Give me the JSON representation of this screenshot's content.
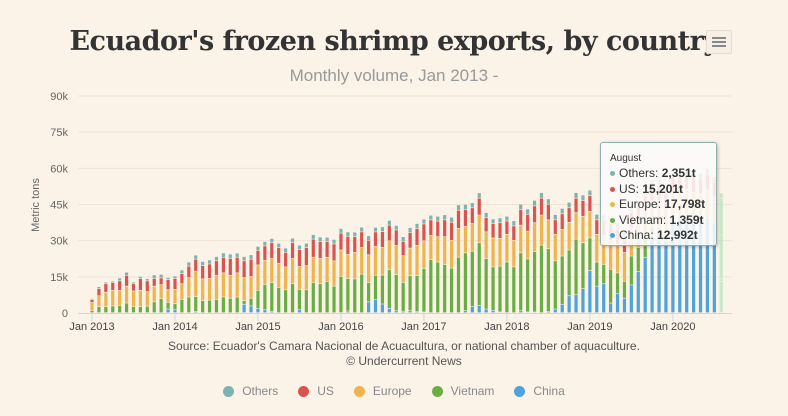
{
  "header": {
    "title": "Ecuador's frozen shrimp exports, by country",
    "subtitle": "Monthly volume, Jan 2013 -",
    "menu_icon": "hamburger-menu-icon"
  },
  "source": {
    "line1": "Source: Ecuador's Camara Nacional de Acuacultura, or national chamber of aquaculture.",
    "line2": "© Undercurrent News"
  },
  "legend": [
    {
      "name": "Others",
      "color": "#7fb3b0"
    },
    {
      "name": "US",
      "color": "#d9534f"
    },
    {
      "name": "Europe",
      "color": "#efb54c"
    },
    {
      "name": "Vietnam",
      "color": "#6aad45"
    },
    {
      "name": "China",
      "color": "#4ea3d8"
    }
  ],
  "tooltip": {
    "title": "August",
    "rows": [
      {
        "label": "Others",
        "value": "2,351t",
        "color": "#7fb3b0"
      },
      {
        "label": "US",
        "value": "15,201t",
        "color": "#d9534f"
      },
      {
        "label": "Europe",
        "value": "17,798t",
        "color": "#efb54c"
      },
      {
        "label": "Vietnam",
        "value": "1,359t",
        "color": "#6aad45"
      },
      {
        "label": "China",
        "value": "12,992t",
        "color": "#4ea3d8"
      }
    ]
  },
  "chart_data": {
    "type": "bar",
    "stacked": true,
    "title": "Ecuador's frozen shrimp exports, by country",
    "subtitle": "Monthly volume, Jan 2013 -",
    "xlabel": "",
    "ylabel": "Metric tons",
    "ylim": [
      0,
      90000
    ],
    "yticks": [
      0,
      15000,
      30000,
      45000,
      60000,
      75000,
      90000
    ],
    "ytick_labels": [
      "0",
      "15k",
      "30k",
      "45k",
      "60k",
      "75k",
      "90k"
    ],
    "xtick_labels": [
      "Jan 2013",
      "Jan 2014",
      "Jan 2015",
      "Jan 2016",
      "Jan 2017",
      "Jan 2018",
      "Jan 2019",
      "Jan 2020"
    ],
    "xtick_month_index": [
      0,
      12,
      24,
      36,
      48,
      60,
      72,
      84
    ],
    "grid": true,
    "legend_position": "bottom",
    "start_month": "Jan 2013",
    "end_month": "Aug 2020",
    "highlighted_index": 91,
    "series": [
      {
        "name": "China",
        "color": "#4ea3d8",
        "values": [
          0,
          0,
          0,
          0,
          0,
          0,
          0,
          0,
          0,
          0,
          0,
          1500,
          1200,
          0,
          0,
          500,
          0,
          0,
          0,
          0,
          0,
          0,
          3500,
          2800,
          1800,
          1200,
          500,
          0,
          0,
          0,
          1200,
          0,
          0,
          0,
          0,
          0,
          0,
          700,
          0,
          0,
          4500,
          5500,
          3600,
          1800,
          800,
          600,
          800,
          400,
          300,
          0,
          0,
          0,
          0,
          0,
          800,
          2500,
          3000,
          1500,
          1000,
          300,
          0,
          0,
          800,
          300,
          300,
          0,
          500,
          1500,
          3500,
          7000,
          7500,
          10000,
          17500,
          11000,
          12000,
          4000,
          8000,
          6000,
          11500,
          17000,
          23000,
          32000,
          33000,
          30000,
          38000,
          38500,
          38500,
          38000,
          37500,
          38000,
          36000,
          12992
        ]
      },
      {
        "name": "Vietnam",
        "color": "#6aad45",
        "values": [
          1000,
          2500,
          2500,
          2800,
          3000,
          4000,
          2500,
          2500,
          2700,
          4500,
          5800,
          2800,
          2500,
          5500,
          6500,
          6200,
          5000,
          5200,
          5500,
          6500,
          6000,
          6500,
          1500,
          3200,
          7500,
          10500,
          12000,
          10500,
          9500,
          12000,
          8500,
          9500,
          12500,
          12000,
          13000,
          11000,
          15000,
          13500,
          14000,
          16000,
          8000,
          10000,
          12000,
          16000,
          15000,
          12000,
          14500,
          15000,
          18000,
          22000,
          21000,
          20000,
          18500,
          23000,
          24000,
          23000,
          26000,
          21000,
          18000,
          19000,
          21000,
          19000,
          24000,
          22000,
          25000,
          28000,
          26000,
          20000,
          20000,
          19000,
          23000,
          19000,
          13500,
          10000,
          8000,
          14000,
          8500,
          7000,
          12000,
          10000,
          8000,
          3500,
          2500,
          3000,
          1500,
          1500,
          1200,
          1000,
          1000,
          1200,
          1100,
          1359
        ]
      },
      {
        "name": "Europe",
        "color": "#efb54c",
        "values": [
          3200,
          4500,
          6000,
          6500,
          6200,
          7000,
          6500,
          6800,
          6000,
          6500,
          5800,
          5200,
          6000,
          6500,
          8000,
          10500,
          9000,
          9000,
          10000,
          10000,
          9500,
          10000,
          9500,
          9000,
          10500,
          10000,
          10000,
          10000,
          9500,
          10500,
          9500,
          10000,
          10500,
          10500,
          10000,
          10500,
          11000,
          10000,
          11000,
          11000,
          11500,
          12000,
          11500,
          12000,
          12000,
          11000,
          11500,
          12500,
          11500,
          10000,
          10500,
          11500,
          11500,
          12000,
          11000,
          11500,
          11500,
          11000,
          12000,
          11500,
          11500,
          11000,
          11500,
          11500,
          12000,
          12500,
          12000,
          11000,
          11000,
          11500,
          11000,
          11000,
          11000,
          11500,
          12000,
          12000,
          12000,
          12000,
          11500,
          11000,
          11000,
          11000,
          11000,
          10500,
          10500,
          11000,
          11500,
          11000,
          11000,
          11500,
          11000,
          17798
        ]
      },
      {
        "name": "US",
        "color": "#d9534f",
        "values": [
          1200,
          3000,
          3500,
          3200,
          4000,
          4500,
          3000,
          4800,
          4500,
          3200,
          2800,
          4200,
          4500,
          4200,
          4800,
          5000,
          5500,
          6000,
          6000,
          6500,
          7000,
          6500,
          7000,
          7200,
          6000,
          6000,
          6500,
          6500,
          6000,
          6500,
          7000,
          7500,
          7500,
          7000,
          6500,
          7000,
          7000,
          7500,
          6500,
          6500,
          6000,
          6000,
          6500,
          6500,
          6500,
          6000,
          6500,
          7000,
          7000,
          6500,
          6500,
          7000,
          7500,
          7500,
          7000,
          6500,
          7000,
          6000,
          6000,
          6500,
          5500,
          6000,
          6500,
          7000,
          7000,
          7000,
          6500,
          6000,
          6500,
          6000,
          6000,
          6500,
          6500,
          6000,
          6500,
          7000,
          6500,
          6500,
          6500,
          6000,
          6500,
          6500,
          6500,
          6000,
          6500,
          6500,
          6000,
          6500,
          6000,
          6500,
          6000,
          15201
        ]
      },
      {
        "name": "Others",
        "color": "#7fb3b0",
        "values": [
          500,
          800,
          700,
          600,
          1200,
          1300,
          700,
          900,
          900,
          1500,
          1500,
          900,
          1000,
          1500,
          1700,
          1700,
          1700,
          1700,
          1800,
          1800,
          1800,
          1700,
          1800,
          1800,
          1700,
          1800,
          1800,
          1800,
          1800,
          1900,
          1800,
          1800,
          1900,
          1900,
          1800,
          1900,
          1900,
          1800,
          1900,
          2000,
          1900,
          1900,
          2000,
          2000,
          1900,
          1900,
          2000,
          2100,
          2000,
          1900,
          2000,
          2100,
          2100,
          2200,
          2100,
          2100,
          2200,
          2000,
          1900,
          2000,
          2000,
          2100,
          2200,
          2200,
          2300,
          2300,
          2200,
          2200,
          2300,
          2300,
          2300,
          2300,
          2300,
          2300,
          2300,
          2300,
          2400,
          2400,
          2400,
          2400,
          2300,
          2300,
          2400,
          2300,
          2400,
          2300,
          2300,
          2300,
          2300,
          2300,
          2300,
          2351
        ]
      }
    ]
  }
}
